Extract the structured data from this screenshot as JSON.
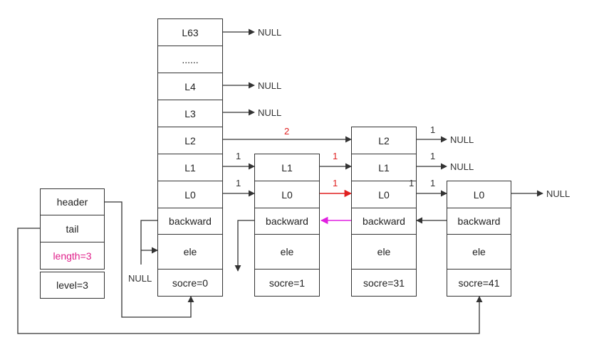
{
  "list": {
    "header": "header",
    "tail": "tail",
    "length": "length=3",
    "level": "level=3"
  },
  "head_node": {
    "levels": [
      "L63",
      "......",
      "L4",
      "L3",
      "L2",
      "L1",
      "L0"
    ],
    "backward": "backward",
    "ele": "ele",
    "score": "socre=0"
  },
  "node1": {
    "levels": [
      "L1",
      "L0"
    ],
    "backward": "backward",
    "ele": "ele",
    "score": "socre=1"
  },
  "node2": {
    "levels": [
      "L2",
      "L1",
      "L0"
    ],
    "backward": "backward",
    "ele": "ele",
    "score": "socre=31"
  },
  "node3": {
    "levels": [
      "L0"
    ],
    "backward": "backward",
    "ele": "ele",
    "score": "socre=41"
  },
  "null_text": "NULL",
  "spans": {
    "one": "1",
    "two": "2"
  },
  "colors": {
    "line": "#333333",
    "red": "#e02020",
    "magenta": "#e020e0",
    "length": "#e0208a"
  }
}
